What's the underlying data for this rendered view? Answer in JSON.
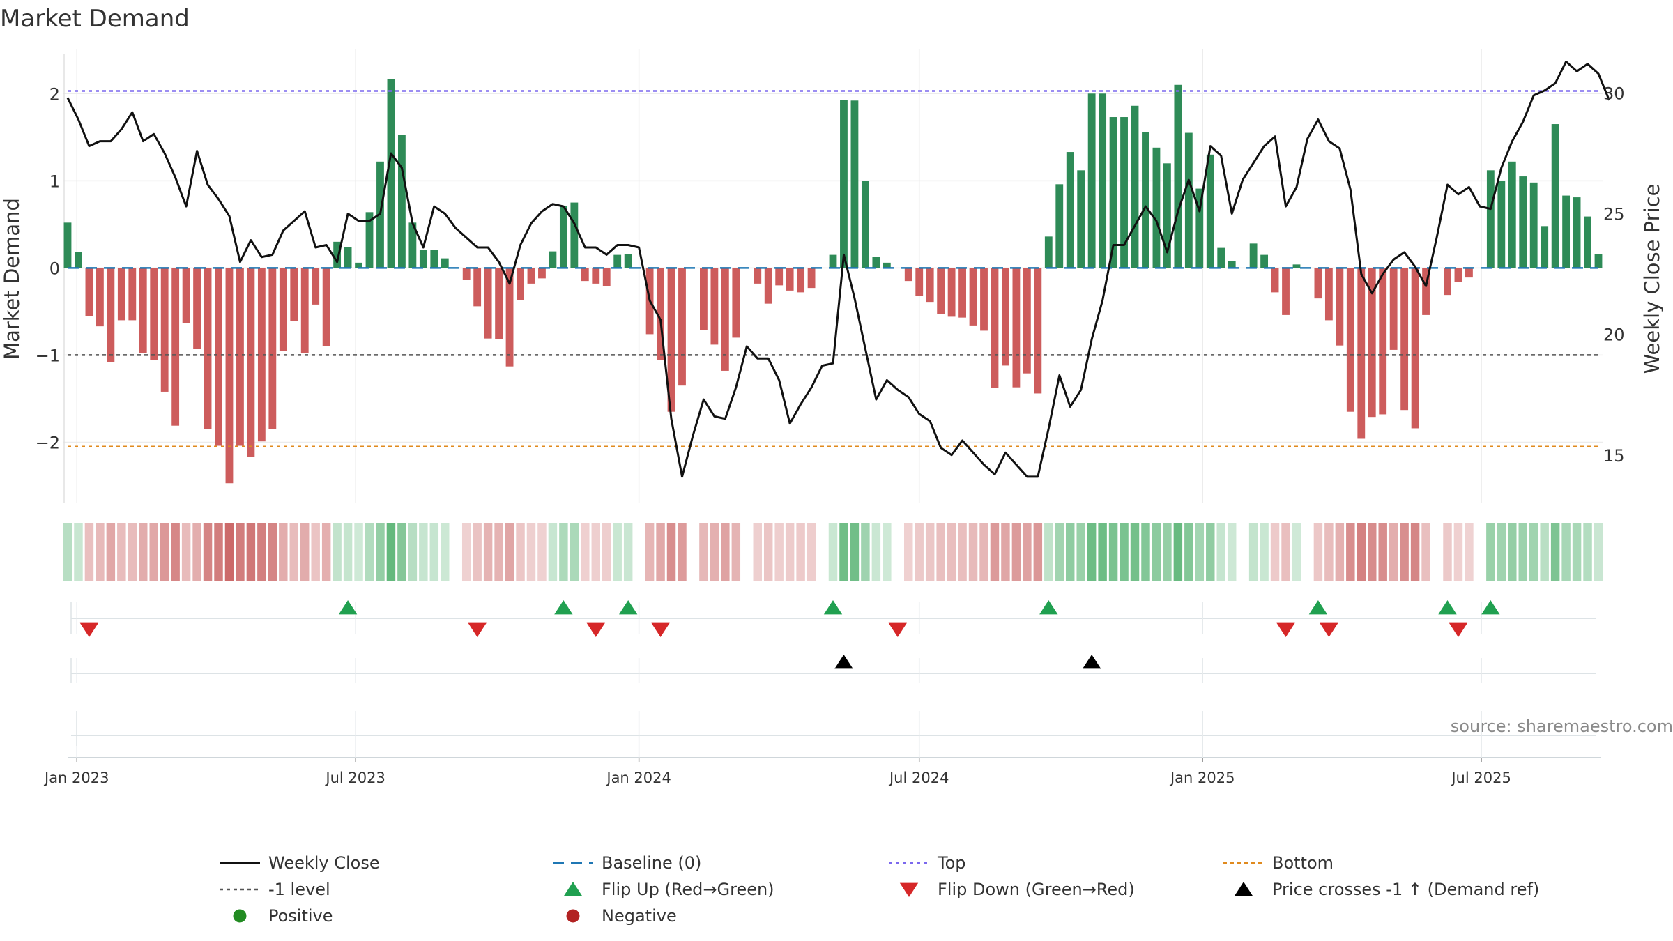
{
  "chart_data": {
    "type": "bar",
    "title": "Market Demand",
    "ylabel_left": "Market Demand",
    "ylabel_right": "Weekly Close Price",
    "ylim_left": [
      -2.7,
      2.45
    ],
    "ylim_right": [
      13.0,
      31.6
    ],
    "yticks_left": [
      2,
      1,
      0,
      -1,
      -2
    ],
    "yticks_left_labels": [
      "2",
      "1",
      "0",
      "−1",
      "−2"
    ],
    "yticks_right": [
      30,
      25,
      20,
      15
    ],
    "yticks_right_labels": [
      "30",
      "25",
      "20",
      "15"
    ],
    "x_start": "2022-12-26",
    "week_days": 7,
    "x_ticks": [
      "Jan 2023",
      "Jul 2023",
      "Jan 2024",
      "Jul 2024",
      "Jan 2025",
      "Jul 2025"
    ],
    "x_tick_dates": [
      "2023-01-01",
      "2023-07-01",
      "2024-01-01",
      "2024-07-01",
      "2025-01-01",
      "2025-07-01"
    ],
    "reference_lines": {
      "top": 2.03,
      "bottom": -2.05,
      "level": -1,
      "baseline": 0
    },
    "colors": {
      "positive": "#2e8b57",
      "negative": "#cd5c5c",
      "price": "#111111",
      "top": "#7b68ee",
      "bottom": "#e08a1e",
      "level": "#555555",
      "baseline": "#1f77b4",
      "flip_up": "#20a050",
      "flip_down": "#d62728",
      "cross": "#000000",
      "legend_positive": "#228b22",
      "legend_negative": "#b22222"
    },
    "demand": [
      0.52,
      0.18,
      -0.55,
      -0.67,
      -1.08,
      -0.6,
      -0.6,
      -0.98,
      -1.06,
      -1.42,
      -1.81,
      -0.63,
      -0.93,
      -1.85,
      -2.04,
      -2.47,
      -2.04,
      -2.17,
      -1.99,
      -1.85,
      -0.95,
      -0.61,
      -0.98,
      -0.42,
      -0.9,
      0.3,
      0.24,
      0.06,
      0.64,
      1.22,
      2.17,
      1.53,
      0.52,
      0.21,
      0.21,
      0.11,
      0.0,
      -0.14,
      -0.44,
      -0.81,
      -0.82,
      -1.13,
      -0.37,
      -0.18,
      -0.12,
      0.19,
      0.71,
      0.75,
      -0.15,
      -0.18,
      -0.21,
      0.15,
      0.16,
      0.0,
      -0.76,
      -1.06,
      -1.65,
      -1.35,
      0.0,
      -0.71,
      -0.88,
      -1.18,
      -0.8,
      0.0,
      -0.18,
      -0.41,
      -0.2,
      -0.26,
      -0.28,
      -0.23,
      0.0,
      0.15,
      1.93,
      1.92,
      1.0,
      0.13,
      0.06,
      0.0,
      -0.15,
      -0.32,
      -0.39,
      -0.53,
      -0.56,
      -0.57,
      -0.66,
      -0.72,
      -1.38,
      -1.12,
      -1.37,
      -1.21,
      -1.44,
      0.36,
      0.96,
      1.33,
      1.12,
      2.0,
      2.0,
      1.73,
      1.73,
      1.86,
      1.56,
      1.38,
      1.2,
      2.1,
      1.55,
      0.91,
      1.3,
      0.23,
      0.08,
      0.0,
      0.28,
      0.15,
      -0.28,
      -0.54,
      0.04,
      0.0,
      -0.35,
      -0.6,
      -0.89,
      -1.65,
      -1.96,
      -1.71,
      -1.68,
      -0.94,
      -1.63,
      -1.84,
      -0.54,
      0.0,
      -0.31,
      -0.16,
      -0.11,
      0.0,
      1.12,
      1.0,
      1.22,
      1.05,
      0.98,
      0.48,
      1.65,
      0.83,
      0.81,
      0.59,
      0.16
    ],
    "close": [
      29.8,
      28.9,
      27.8,
      28.0,
      28.0,
      28.5,
      29.2,
      28.0,
      28.3,
      27.5,
      26.5,
      25.3,
      27.6,
      26.2,
      25.6,
      24.9,
      23.0,
      23.9,
      23.2,
      23.3,
      24.3,
      24.7,
      25.1,
      23.6,
      23.7,
      23.0,
      25.0,
      24.7,
      24.7,
      25.0,
      27.5,
      26.9,
      24.6,
      23.6,
      25.3,
      25.0,
      24.4,
      24.0,
      23.6,
      23.6,
      23.0,
      22.1,
      23.7,
      24.6,
      25.1,
      25.4,
      25.3,
      24.6,
      23.6,
      23.6,
      23.3,
      23.7,
      23.7,
      23.6,
      21.4,
      20.6,
      16.5,
      14.1,
      15.8,
      17.3,
      16.6,
      16.5,
      17.8,
      19.5,
      19.0,
      19.0,
      18.1,
      16.3,
      17.1,
      17.8,
      18.7,
      18.8,
      23.3,
      21.5,
      19.4,
      17.3,
      18.1,
      17.7,
      17.4,
      16.7,
      16.4,
      15.3,
      15.0,
      15.6,
      15.1,
      14.6,
      14.2,
      15.1,
      14.6,
      14.1,
      14.1,
      16.1,
      18.3,
      17.0,
      17.7,
      19.8,
      21.4,
      23.7,
      23.7,
      24.5,
      25.3,
      24.7,
      23.4,
      25.1,
      26.4,
      25.1,
      27.8,
      27.4,
      25.0,
      26.4,
      27.1,
      27.8,
      28.2,
      25.3,
      26.1,
      28.1,
      28.9,
      28.0,
      27.7,
      26.0,
      22.5,
      21.7,
      22.5,
      23.1,
      23.4,
      22.8,
      22.0,
      24.0,
      26.2,
      25.8,
      26.1,
      25.3,
      25.2,
      26.9,
      28.0,
      28.8,
      29.9,
      30.1,
      30.4,
      31.3,
      30.9,
      31.2,
      30.8,
      29.7
    ],
    "flip_up_weeks": [
      26,
      46,
      52,
      71,
      91,
      116,
      128,
      132
    ],
    "flip_down_weeks": [
      2,
      38,
      49,
      55,
      77,
      113,
      117,
      129
    ],
    "cross_weeks": [
      72,
      95
    ]
  },
  "source": "source: sharemaestro.com",
  "legend": [
    {
      "key": "weekly_close",
      "label": "Weekly Close",
      "marker": "line"
    },
    {
      "key": "baseline",
      "label": "Baseline (0)",
      "marker": "dash"
    },
    {
      "key": "top",
      "label": "Top",
      "marker": "dot"
    },
    {
      "key": "bottom",
      "label": "Bottom",
      "marker": "dot"
    },
    {
      "key": "level",
      "label": "-1 level",
      "marker": "dot"
    },
    {
      "key": "flip_up",
      "label": "Flip Up (Red→Green)",
      "marker": "tri-up"
    },
    {
      "key": "flip_down",
      "label": "Flip Down (Green→Red)",
      "marker": "tri-down"
    },
    {
      "key": "cross",
      "label": "Price crosses -1 ↑ (Demand ref)",
      "marker": "tri-up"
    },
    {
      "key": "positive",
      "label": "Positive",
      "marker": "circle"
    },
    {
      "key": "negative",
      "label": "Negative",
      "marker": "circle"
    }
  ]
}
